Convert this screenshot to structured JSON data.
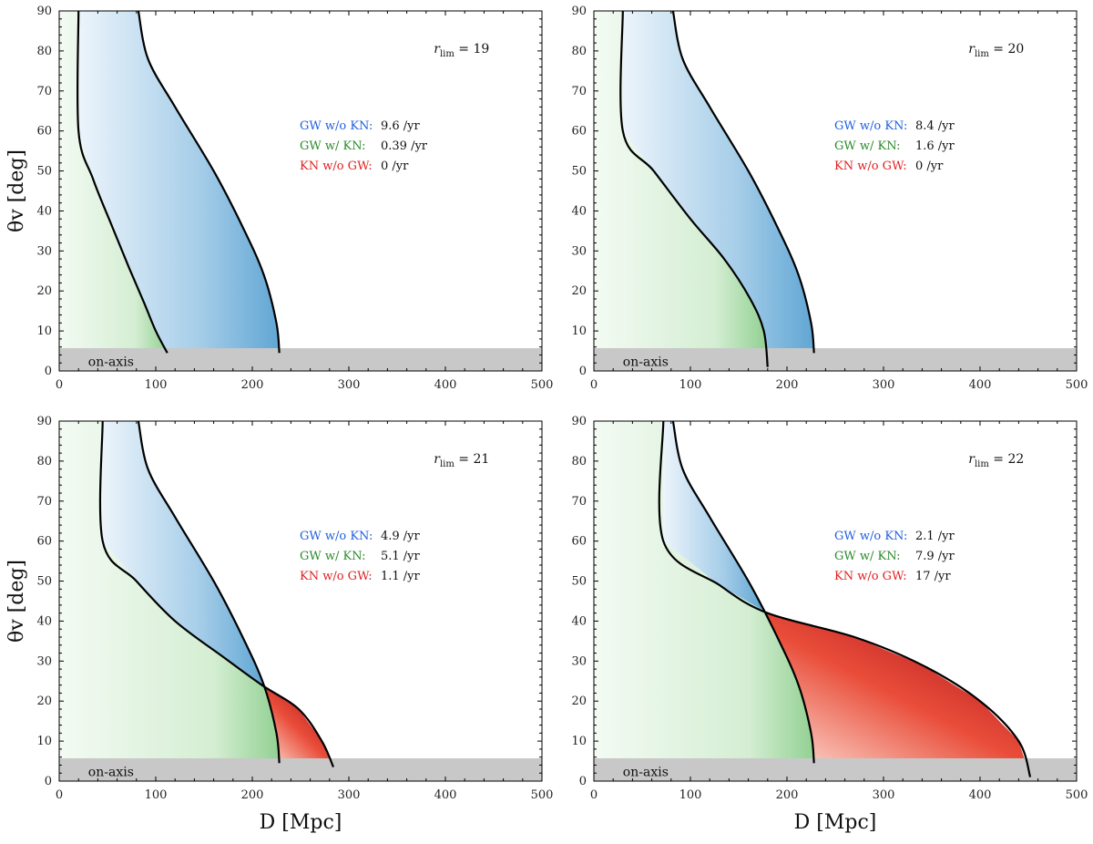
{
  "figure": {
    "xlabel": "D [Mpc]",
    "ylabel": "θv [deg]",
    "xlim": [
      0,
      500
    ],
    "ylim": [
      0,
      90
    ],
    "xticks": [
      "0",
      "100",
      "200",
      "300",
      "400",
      "500"
    ],
    "yticks": [
      "0",
      "10",
      "20",
      "30",
      "40",
      "50",
      "60",
      "70",
      "80",
      "90"
    ],
    "onaxis_label": "on-axis",
    "onaxis_band": [
      0,
      5.7
    ],
    "legend_labels": [
      "GW w/o KN:",
      "GW w/ KN:",
      "KN w/o GW:"
    ],
    "colors": {
      "gw_only": "#1f5fe0",
      "both": "#2a8a2a",
      "kn_only": "#e02020",
      "band": "#c8c8c8"
    }
  },
  "chart_data": [
    {
      "type": "heatmap",
      "panel": "top-left",
      "rlim_label": "19",
      "rates": [
        "9.6 /yr",
        "0.39 /yr",
        "0 /yr"
      ],
      "kn_boundary": [
        [
          112,
          4.5
        ],
        [
          100,
          10
        ],
        [
          88,
          17
        ],
        [
          72,
          26
        ],
        [
          55,
          36
        ],
        [
          35,
          48
        ],
        [
          20,
          60
        ],
        [
          20,
          90
        ]
      ],
      "gw_boundary": [
        [
          228,
          4.5
        ],
        [
          225,
          12
        ],
        [
          212,
          24
        ],
        [
          190,
          36
        ],
        [
          160,
          50
        ],
        [
          120,
          66
        ],
        [
          92,
          78
        ],
        [
          82,
          90
        ]
      ]
    },
    {
      "type": "heatmap",
      "panel": "top-right",
      "rlim_label": "20",
      "rates": [
        "8.4 /yr",
        "1.6 /yr",
        "0 /yr"
      ],
      "kn_boundary": [
        [
          180,
          1
        ],
        [
          176,
          10
        ],
        [
          162,
          18
        ],
        [
          135,
          28
        ],
        [
          100,
          38
        ],
        [
          62,
          50
        ],
        [
          30,
          60
        ],
        [
          30,
          90
        ]
      ],
      "gw_boundary": [
        [
          228,
          4.5
        ],
        [
          225,
          12
        ],
        [
          212,
          24
        ],
        [
          190,
          36
        ],
        [
          160,
          50
        ],
        [
          120,
          66
        ],
        [
          92,
          78
        ],
        [
          82,
          90
        ]
      ]
    },
    {
      "type": "heatmap",
      "panel": "bottom-left",
      "rlim_label": "21",
      "rates": [
        "4.9 /yr",
        "5.1 /yr",
        "1.1 /yr"
      ],
      "kn_boundary": [
        [
          284,
          3.5
        ],
        [
          272,
          10
        ],
        [
          248,
          18
        ],
        [
          210,
          24
        ],
        [
          170,
          31
        ],
        [
          120,
          40
        ],
        [
          80,
          50
        ],
        [
          45,
          60
        ],
        [
          45,
          90
        ]
      ],
      "gw_boundary": [
        [
          228,
          4.5
        ],
        [
          225,
          12
        ],
        [
          212,
          24
        ],
        [
          190,
          36
        ],
        [
          160,
          50
        ],
        [
          120,
          66
        ],
        [
          92,
          78
        ],
        [
          82,
          90
        ]
      ]
    },
    {
      "type": "heatmap",
      "panel": "bottom-right",
      "rlim_label": "22",
      "rates": [
        "2.1 /yr",
        "7.9 /yr",
        "17 /yr"
      ],
      "kn_boundary": [
        [
          452,
          1
        ],
        [
          440,
          10
        ],
        [
          400,
          20
        ],
        [
          340,
          29
        ],
        [
          270,
          36
        ],
        [
          180,
          42
        ],
        [
          130,
          49
        ],
        [
          72,
          60
        ],
        [
          72,
          90
        ]
      ],
      "gw_boundary": [
        [
          228,
          4.5
        ],
        [
          225,
          12
        ],
        [
          212,
          24
        ],
        [
          190,
          36
        ],
        [
          160,
          50
        ],
        [
          120,
          66
        ],
        [
          92,
          78
        ],
        [
          82,
          90
        ]
      ]
    }
  ]
}
